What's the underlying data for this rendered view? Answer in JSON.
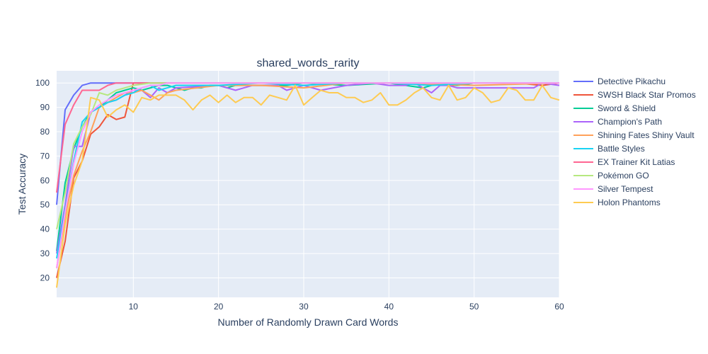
{
  "chart_data": {
    "type": "line",
    "title": "shared_words_rarity",
    "xlabel": "Number of Randomly Drawn Card Words",
    "ylabel": "Test Accuracy",
    "xlim": [
      1,
      60
    ],
    "ylim": [
      12,
      105
    ],
    "xticks": [
      10,
      20,
      30,
      40,
      50,
      60
    ],
    "yticks": [
      20,
      30,
      40,
      50,
      60,
      70,
      80,
      90,
      100
    ],
    "grid": true,
    "legend_position": "right",
    "plot_bg": "#e5ecf6",
    "series": [
      {
        "name": "Detective Pikachu",
        "color": "#636efa",
        "points": [
          [
            1,
            50
          ],
          [
            2,
            89
          ],
          [
            3,
            95
          ],
          [
            4,
            99
          ],
          [
            5,
            100
          ],
          [
            60,
            100
          ]
        ]
      },
      {
        "name": "SWSH Black Star Promos",
        "color": "#ef553b",
        "points": [
          [
            1,
            20
          ],
          [
            2,
            35
          ],
          [
            3,
            61
          ],
          [
            4,
            68
          ],
          [
            5,
            79
          ],
          [
            6,
            82
          ],
          [
            7,
            87
          ],
          [
            8,
            85
          ],
          [
            9,
            86
          ],
          [
            10,
            100
          ],
          [
            15,
            100
          ],
          [
            20,
            100
          ],
          [
            25,
            100
          ],
          [
            30,
            100
          ],
          [
            40,
            100
          ],
          [
            48,
            99
          ],
          [
            50,
            100
          ],
          [
            55,
            100
          ],
          [
            58,
            99
          ],
          [
            60,
            100
          ]
        ]
      },
      {
        "name": "Sword & Shield",
        "color": "#00cc96",
        "points": [
          [
            1,
            31
          ],
          [
            2,
            59
          ],
          [
            3,
            73
          ],
          [
            4,
            82
          ],
          [
            5,
            88
          ],
          [
            6,
            90
          ],
          [
            7,
            93
          ],
          [
            8,
            96
          ],
          [
            9,
            97
          ],
          [
            10,
            98
          ],
          [
            11,
            97
          ],
          [
            12,
            98
          ],
          [
            13,
            99
          ],
          [
            14,
            99
          ],
          [
            15,
            98
          ],
          [
            16,
            97
          ],
          [
            17,
            98
          ],
          [
            18,
            98
          ],
          [
            19,
            99
          ],
          [
            20,
            99
          ],
          [
            21,
            98
          ],
          [
            22,
            99
          ],
          [
            25,
            99
          ],
          [
            28,
            99
          ],
          [
            30,
            100
          ],
          [
            35,
            99
          ],
          [
            40,
            100
          ],
          [
            42,
            99
          ],
          [
            44,
            98
          ],
          [
            46,
            100
          ],
          [
            48,
            99
          ],
          [
            50,
            100
          ],
          [
            55,
            100
          ],
          [
            60,
            100
          ]
        ]
      },
      {
        "name": "Champion's Path",
        "color": "#ab63fa",
        "points": [
          [
            1,
            30
          ],
          [
            2,
            50
          ],
          [
            3,
            74
          ],
          [
            4,
            74
          ],
          [
            5,
            88
          ],
          [
            6,
            90
          ],
          [
            7,
            92
          ],
          [
            8,
            93
          ],
          [
            9,
            95
          ],
          [
            10,
            97
          ],
          [
            11,
            97
          ],
          [
            12,
            94
          ],
          [
            13,
            98
          ],
          [
            14,
            96
          ],
          [
            15,
            98
          ],
          [
            20,
            99
          ],
          [
            22,
            97
          ],
          [
            24,
            99
          ],
          [
            27,
            99
          ],
          [
            28,
            97
          ],
          [
            30,
            99
          ],
          [
            32,
            97
          ],
          [
            35,
            99
          ],
          [
            38,
            100
          ],
          [
            40,
            99
          ],
          [
            42,
            99
          ],
          [
            43,
            100
          ],
          [
            45,
            96
          ],
          [
            46,
            99
          ],
          [
            47,
            99
          ],
          [
            48,
            98
          ],
          [
            50,
            98
          ],
          [
            55,
            98
          ],
          [
            57,
            98
          ],
          [
            58,
            100
          ],
          [
            60,
            99
          ]
        ]
      },
      {
        "name": "Shining Fates Shiny Vault",
        "color": "#ffa15a",
        "points": [
          [
            1,
            24
          ],
          [
            2,
            45
          ],
          [
            3,
            62
          ],
          [
            4,
            72
          ],
          [
            5,
            80
          ],
          [
            6,
            90
          ],
          [
            7,
            92
          ],
          [
            8,
            94
          ],
          [
            9,
            96
          ],
          [
            10,
            96
          ],
          [
            11,
            97
          ],
          [
            12,
            95
          ],
          [
            13,
            93
          ],
          [
            14,
            96
          ],
          [
            15,
            97
          ],
          [
            20,
            99
          ],
          [
            25,
            99
          ],
          [
            30,
            98
          ],
          [
            35,
            100
          ],
          [
            40,
            100
          ],
          [
            50,
            99
          ],
          [
            60,
            100
          ]
        ]
      },
      {
        "name": "Battle Styles",
        "color": "#19d3f3",
        "points": [
          [
            1,
            28
          ],
          [
            2,
            48
          ],
          [
            3,
            68
          ],
          [
            4,
            84
          ],
          [
            5,
            88
          ],
          [
            6,
            90
          ],
          [
            7,
            92
          ],
          [
            8,
            93
          ],
          [
            9,
            95
          ],
          [
            10,
            96
          ],
          [
            11,
            98
          ],
          [
            12,
            99
          ],
          [
            13,
            97
          ],
          [
            14,
            98
          ],
          [
            15,
            99
          ],
          [
            20,
            99
          ],
          [
            25,
            100
          ],
          [
            30,
            99
          ],
          [
            35,
            100
          ],
          [
            40,
            100
          ],
          [
            45,
            99
          ],
          [
            50,
            100
          ],
          [
            60,
            100
          ]
        ]
      },
      {
        "name": "EX Trainer Kit Latias",
        "color": "#ff6692",
        "points": [
          [
            1,
            55
          ],
          [
            2,
            83
          ],
          [
            3,
            91
          ],
          [
            4,
            97
          ],
          [
            5,
            97
          ],
          [
            6,
            97
          ],
          [
            7,
            99
          ],
          [
            8,
            100
          ],
          [
            60,
            100
          ]
        ]
      },
      {
        "name": "Pokémon GO",
        "color": "#b6e880",
        "points": [
          [
            1,
            40
          ],
          [
            2,
            55
          ],
          [
            3,
            75
          ],
          [
            4,
            82
          ],
          [
            5,
            87
          ],
          [
            6,
            96
          ],
          [
            7,
            95
          ],
          [
            8,
            97
          ],
          [
            9,
            98
          ],
          [
            10,
            99
          ],
          [
            12,
            100
          ],
          [
            60,
            100
          ]
        ]
      },
      {
        "name": "Silver Tempest",
        "color": "#ff97ff",
        "points": [
          [
            1,
            24
          ],
          [
            2,
            47
          ],
          [
            3,
            67
          ],
          [
            4,
            80
          ],
          [
            5,
            88
          ],
          [
            6,
            91
          ],
          [
            7,
            93
          ],
          [
            8,
            95
          ],
          [
            9,
            96
          ],
          [
            10,
            97
          ],
          [
            11,
            98
          ],
          [
            12,
            99
          ],
          [
            13,
            99
          ],
          [
            14,
            100
          ],
          [
            60,
            100
          ]
        ]
      },
      {
        "name": "Holon Phantoms",
        "color": "#fecb52",
        "points": [
          [
            1,
            16
          ],
          [
            2,
            42
          ],
          [
            3,
            58
          ],
          [
            4,
            68
          ],
          [
            5,
            94
          ],
          [
            6,
            93
          ],
          [
            7,
            86
          ],
          [
            8,
            89
          ],
          [
            9,
            91
          ],
          [
            10,
            88
          ],
          [
            11,
            94
          ],
          [
            12,
            93
          ],
          [
            13,
            95
          ],
          [
            14,
            95
          ],
          [
            15,
            95
          ],
          [
            16,
            93
          ],
          [
            17,
            89
          ],
          [
            18,
            93
          ],
          [
            19,
            95
          ],
          [
            20,
            92
          ],
          [
            21,
            95
          ],
          [
            22,
            92
          ],
          [
            23,
            94
          ],
          [
            24,
            94
          ],
          [
            25,
            91
          ],
          [
            26,
            95
          ],
          [
            27,
            94
          ],
          [
            28,
            93
          ],
          [
            29,
            99
          ],
          [
            30,
            91
          ],
          [
            31,
            94
          ],
          [
            32,
            97
          ],
          [
            33,
            96
          ],
          [
            34,
            96
          ],
          [
            35,
            94
          ],
          [
            36,
            94
          ],
          [
            37,
            92
          ],
          [
            38,
            93
          ],
          [
            39,
            96
          ],
          [
            40,
            91
          ],
          [
            41,
            91
          ],
          [
            42,
            93
          ],
          [
            43,
            96
          ],
          [
            44,
            98
          ],
          [
            45,
            94
          ],
          [
            46,
            93
          ],
          [
            47,
            99
          ],
          [
            48,
            93
          ],
          [
            49,
            94
          ],
          [
            50,
            98
          ],
          [
            51,
            96
          ],
          [
            52,
            92
          ],
          [
            53,
            93
          ],
          [
            54,
            98
          ],
          [
            55,
            97
          ],
          [
            56,
            93
          ],
          [
            57,
            93
          ],
          [
            58,
            99
          ],
          [
            59,
            94
          ],
          [
            60,
            93
          ]
        ]
      }
    ]
  }
}
